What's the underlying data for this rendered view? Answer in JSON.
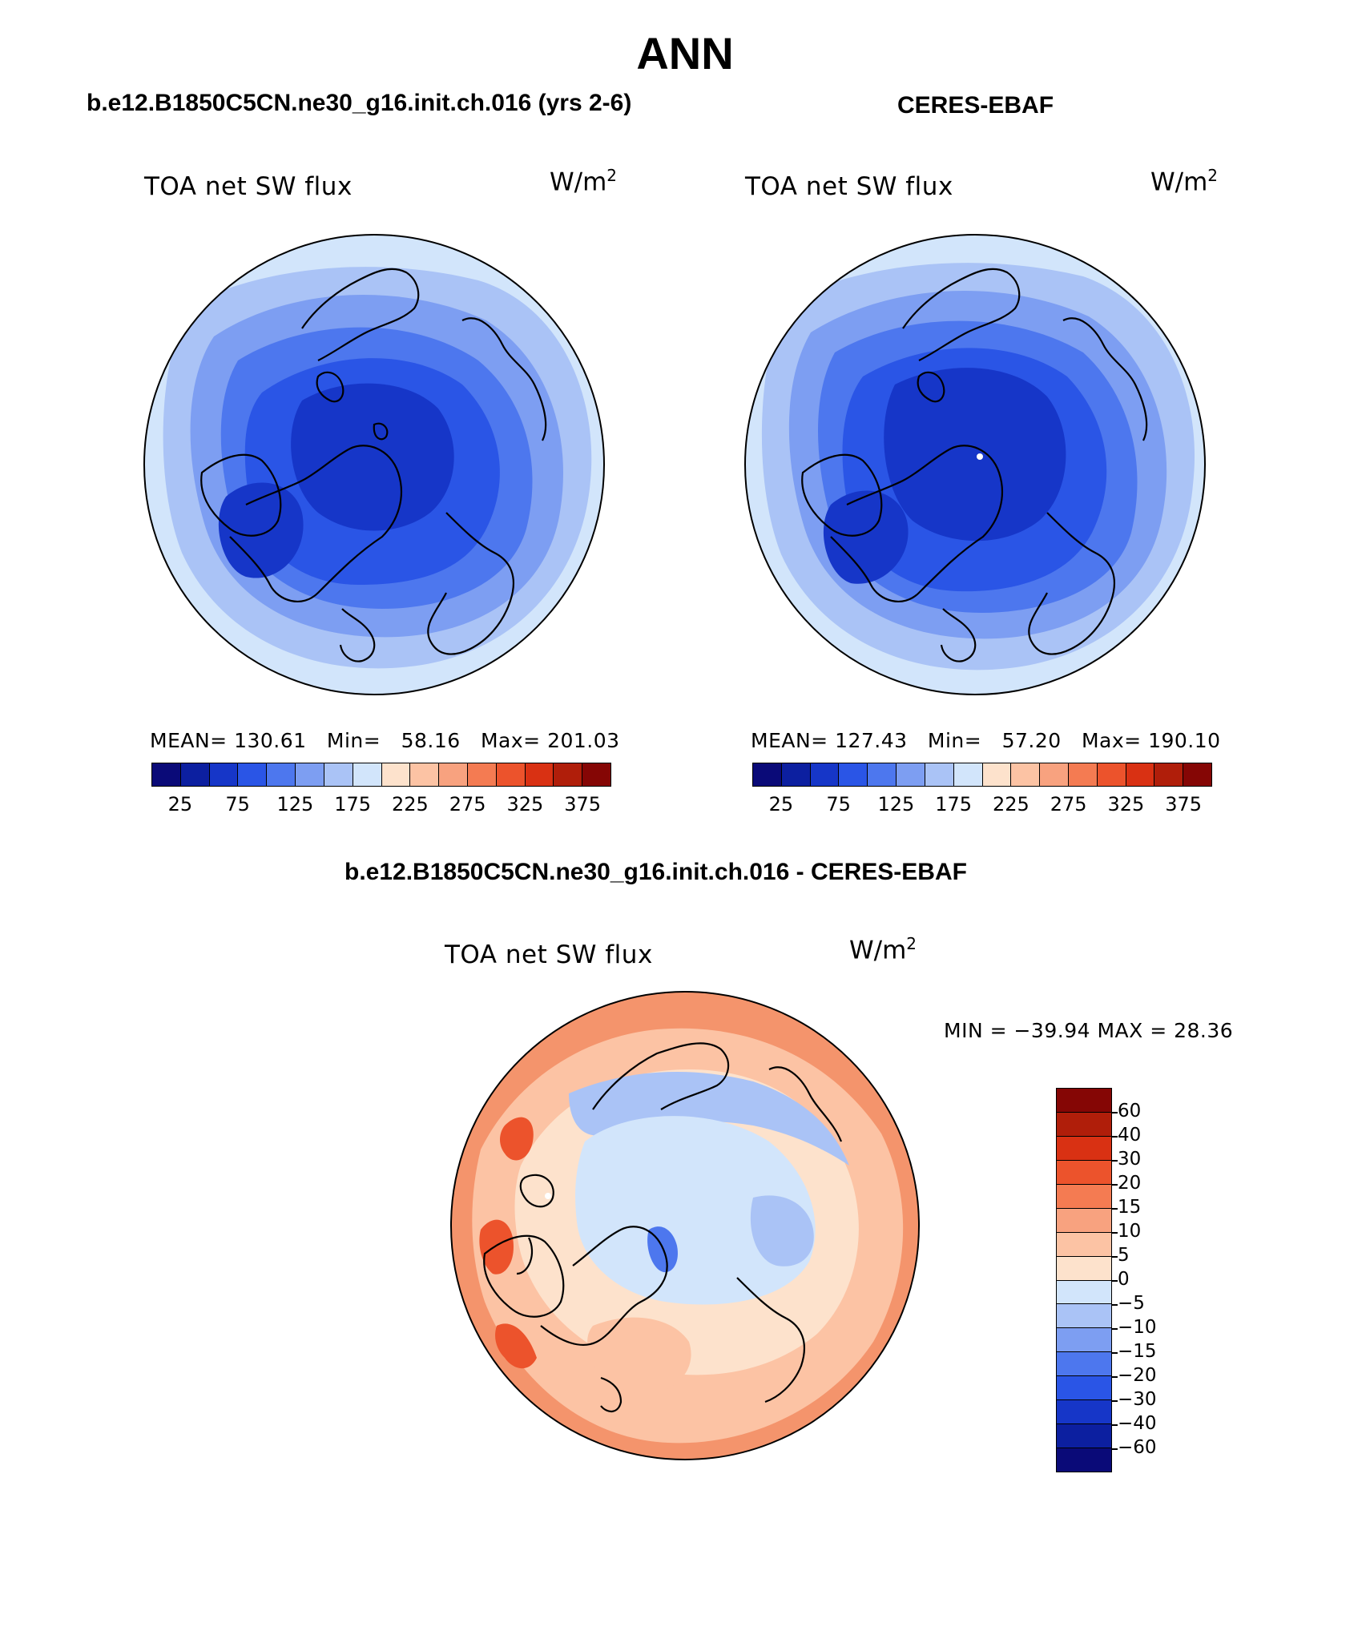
{
  "figure": {
    "title": "ANN"
  },
  "panels": [
    {
      "case_title": "b.e12.B1850C5CN.ne30_g16.init.ch.016 (yrs 2-6)",
      "field_label": "TOA net SW flux",
      "units_label": "W/m",
      "units_exp": "2",
      "mean_label": "MEAN=",
      "mean_value": "130.61",
      "min_label": "Min=",
      "min_value": "58.16",
      "max_label": "Max=",
      "max_value": "201.03"
    },
    {
      "case_title": "CERES-EBAF",
      "field_label": "TOA net SW flux",
      "units_label": "W/m",
      "units_exp": "2",
      "mean_label": "MEAN=",
      "mean_value": "127.43",
      "min_label": "Min=",
      "min_value": "57.20",
      "max_label": "Max=",
      "max_value": "190.10"
    }
  ],
  "diff_panel": {
    "case_title": "b.e12.B1850C5CN.ne30_g16.init.ch.016 - CERES-EBAF",
    "field_label": "TOA net SW flux",
    "units_label": "W/m",
    "units_exp": "2",
    "minmax_text": "MIN = −39.94 MAX =   28.36"
  },
  "abs_colorbar": {
    "colors": [
      "#0a0a78",
      "#0c1fa0",
      "#1636c8",
      "#2a55e6",
      "#4d77ee",
      "#7d9ef2",
      "#aac3f6",
      "#d2e5fb",
      "#fde2cc",
      "#fcc3a4",
      "#f8a27f",
      "#f47b52",
      "#ec532c",
      "#d93113",
      "#b01e0a",
      "#850605"
    ],
    "tick_labels": [
      "25",
      "75",
      "125",
      "175",
      "225",
      "275",
      "325",
      "375"
    ]
  },
  "diff_colorbar": {
    "colors": [
      "#850605",
      "#b01e0a",
      "#d93113",
      "#ec532c",
      "#f47b52",
      "#f8a27f",
      "#fcc3a4",
      "#fde2cc",
      "#d2e5fb",
      "#aac3f6",
      "#7d9ef2",
      "#4d77ee",
      "#2a55e6",
      "#1636c8",
      "#0c1fa0",
      "#0a0a78"
    ],
    "tick_labels": [
      "60",
      "40",
      "30",
      "20",
      "15",
      "10",
      "5",
      "0",
      "−5",
      "−10",
      "−15",
      "−20",
      "−30",
      "−40",
      "−60"
    ]
  },
  "map_colors": {
    "abs_rings": [
      "#d2e5fb",
      "#aac3f6",
      "#7d9ef2",
      "#4d77ee",
      "#2a55e6",
      "#1636c8"
    ],
    "diff_base": "#f4946c",
    "diff_mid": "#fcc3a4",
    "diff_light": "#fde2cc",
    "diff_neg1": "#d2e5fb",
    "diff_neg2": "#aac3f6",
    "diff_neg3": "#4d77ee",
    "diff_hot": "#ec532c"
  }
}
